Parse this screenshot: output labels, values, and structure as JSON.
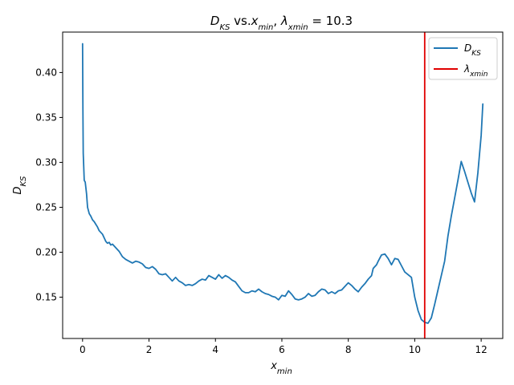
{
  "chart_data": {
    "type": "line",
    "title": {
      "main": "D",
      "main_sub": "KS",
      "mid": " vs.",
      "x": "x",
      "x_sub": "min",
      "sep": ",  ",
      "lam": "λ",
      "lam_sub": "xmin",
      "eq": " = 10.3"
    },
    "xlabel": {
      "base": "x",
      "sub": "min"
    },
    "ylabel": {
      "base": "D",
      "sub": "KS"
    },
    "xlim": [
      -0.6,
      12.65
    ],
    "ylim": [
      0.104,
      0.445
    ],
    "xticks": [
      0,
      2,
      4,
      6,
      8,
      10,
      12
    ],
    "yticks": [
      0.15,
      0.2,
      0.25,
      0.3,
      0.35,
      0.4
    ],
    "xtick_labels": [
      "0",
      "2",
      "4",
      "6",
      "8",
      "10",
      "12"
    ],
    "ytick_labels": [
      "0.15",
      "0.20",
      "0.25",
      "0.30",
      "0.35",
      "0.40"
    ],
    "legend": {
      "placement": "upper right",
      "entries": [
        {
          "base": "D",
          "sub": "KS",
          "color": "#1f77b4"
        },
        {
          "base": "λ",
          "sub": "xmin",
          "color": "#e00000"
        }
      ]
    },
    "vline": {
      "x": 10.3,
      "color": "#e00000"
    },
    "series": [
      {
        "color": "#1f77b4",
        "x": [
          0.0,
          0.01,
          0.02,
          0.03,
          0.05,
          0.08,
          0.12,
          0.15,
          0.2,
          0.25,
          0.3,
          0.35,
          0.4,
          0.45,
          0.5,
          0.55,
          0.6,
          0.65,
          0.7,
          0.75,
          0.8,
          0.85,
          0.9,
          0.95,
          1.0,
          1.1,
          1.2,
          1.3,
          1.4,
          1.5,
          1.6,
          1.7,
          1.8,
          1.9,
          2.0,
          2.1,
          2.2,
          2.3,
          2.4,
          2.5,
          2.6,
          2.7,
          2.8,
          2.9,
          3.0,
          3.1,
          3.2,
          3.3,
          3.4,
          3.5,
          3.6,
          3.7,
          3.8,
          3.9,
          4.0,
          4.1,
          4.2,
          4.3,
          4.4,
          4.5,
          4.6,
          4.7,
          4.8,
          4.9,
          5.0,
          5.1,
          5.2,
          5.3,
          5.4,
          5.5,
          5.6,
          5.7,
          5.8,
          5.9,
          6.0,
          6.1,
          6.2,
          6.3,
          6.4,
          6.5,
          6.6,
          6.7,
          6.8,
          6.9,
          7.0,
          7.1,
          7.2,
          7.3,
          7.4,
          7.5,
          7.6,
          7.7,
          7.8,
          7.9,
          8.0,
          8.1,
          8.2,
          8.3,
          8.4,
          8.5,
          8.6,
          8.7,
          8.75,
          8.85,
          8.9,
          9.0,
          9.1,
          9.2,
          9.3,
          9.4,
          9.5,
          9.6,
          9.7,
          9.8,
          9.9,
          10.0,
          10.1,
          10.2,
          10.3,
          10.4,
          10.5,
          10.6,
          10.7,
          10.8,
          10.9,
          11.0,
          11.1,
          11.2,
          11.3,
          11.4,
          11.5,
          11.6,
          11.7,
          11.8,
          11.9,
          12.0,
          12.05
        ],
        "values": [
          0.432,
          0.36,
          0.31,
          0.3,
          0.28,
          0.278,
          0.265,
          0.25,
          0.243,
          0.24,
          0.236,
          0.234,
          0.231,
          0.228,
          0.224,
          0.222,
          0.22,
          0.216,
          0.212,
          0.21,
          0.211,
          0.208,
          0.209,
          0.207,
          0.205,
          0.201,
          0.195,
          0.192,
          0.19,
          0.188,
          0.19,
          0.189,
          0.187,
          0.183,
          0.182,
          0.184,
          0.181,
          0.176,
          0.175,
          0.176,
          0.172,
          0.168,
          0.172,
          0.168,
          0.166,
          0.163,
          0.164,
          0.163,
          0.165,
          0.168,
          0.17,
          0.169,
          0.174,
          0.172,
          0.17,
          0.175,
          0.171,
          0.174,
          0.172,
          0.169,
          0.167,
          0.162,
          0.157,
          0.155,
          0.155,
          0.157,
          0.156,
          0.159,
          0.156,
          0.154,
          0.153,
          0.151,
          0.15,
          0.147,
          0.152,
          0.151,
          0.157,
          0.153,
          0.148,
          0.147,
          0.148,
          0.15,
          0.154,
          0.151,
          0.152,
          0.156,
          0.159,
          0.158,
          0.154,
          0.156,
          0.154,
          0.157,
          0.158,
          0.162,
          0.166,
          0.163,
          0.159,
          0.156,
          0.161,
          0.165,
          0.17,
          0.174,
          0.182,
          0.186,
          0.19,
          0.197,
          0.198,
          0.193,
          0.186,
          0.193,
          0.192,
          0.185,
          0.178,
          0.175,
          0.172,
          0.15,
          0.135,
          0.125,
          0.122,
          0.121,
          0.127,
          0.142,
          0.158,
          0.174,
          0.19,
          0.218,
          0.24,
          0.26,
          0.28,
          0.301,
          0.29,
          0.278,
          0.266,
          0.256,
          0.288,
          0.33,
          0.365
        ]
      }
    ]
  }
}
